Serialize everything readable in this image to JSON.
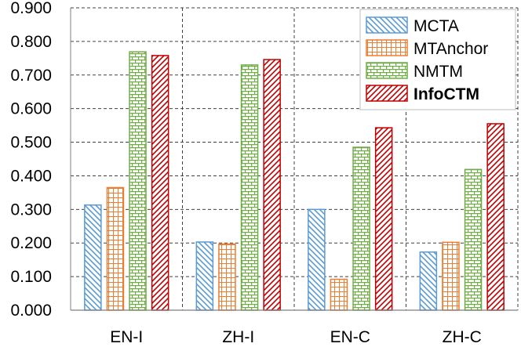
{
  "chart_data": {
    "type": "bar",
    "categories": [
      "EN-I",
      "ZH-I",
      "EN-C",
      "ZH-C"
    ],
    "series": [
      {
        "name": "MCTA",
        "values": [
          0.313,
          0.203,
          0.3,
          0.173
        ],
        "color": "#5b9bd5",
        "pattern": "diagonal-down"
      },
      {
        "name": "MTAnchor",
        "values": [
          0.365,
          0.197,
          0.092,
          0.202
        ],
        "color": "#ed7d31",
        "pattern": "grid"
      },
      {
        "name": "NMTM",
        "values": [
          0.769,
          0.73,
          0.485,
          0.419
        ],
        "color": "#70ad47",
        "pattern": "brick"
      },
      {
        "name": "InfoCTM",
        "values": [
          0.758,
          0.746,
          0.543,
          0.555
        ],
        "color": "#c00000",
        "pattern": "diagonal-up",
        "bold": true
      }
    ],
    "ylim": [
      0,
      0.9
    ],
    "yticks": [
      "0.000",
      "0.100",
      "0.200",
      "0.300",
      "0.400",
      "0.500",
      "0.600",
      "0.700",
      "0.800",
      "0.900"
    ],
    "title": "",
    "xlabel": "",
    "ylabel": "",
    "grid": true,
    "legend": "top-right"
  }
}
